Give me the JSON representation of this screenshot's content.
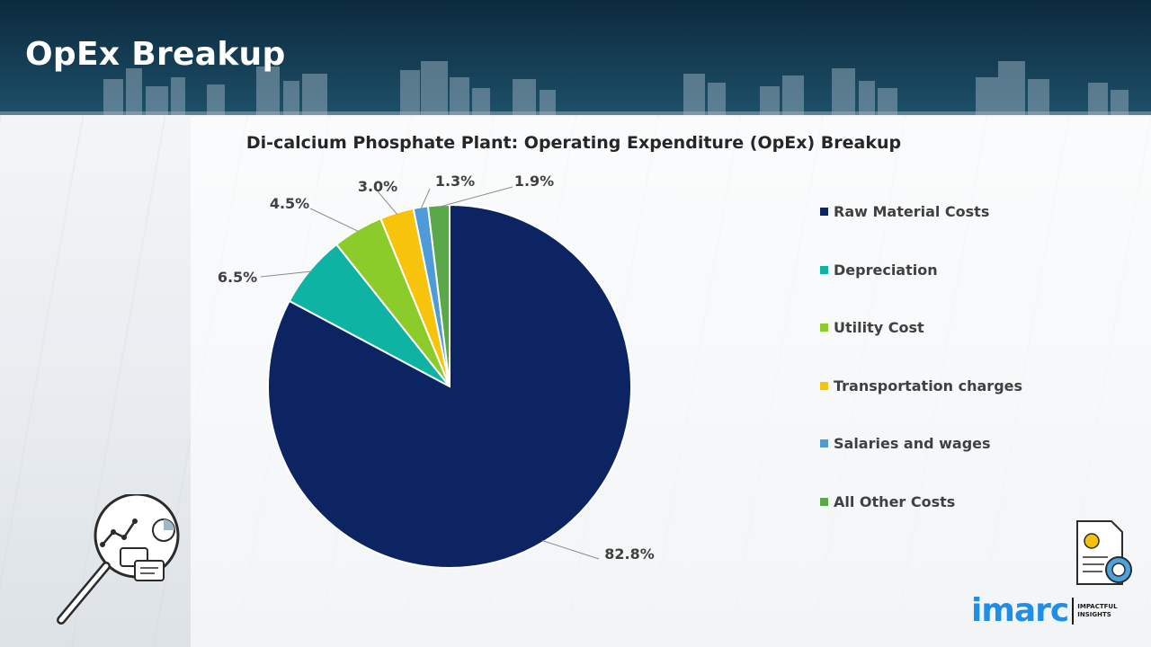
{
  "header": {
    "title": "OpEx Breakup"
  },
  "chart_data": {
    "type": "pie",
    "title": "Di-calcium Phosphate Plant: Operating Expenditure (OpEx) Breakup",
    "categories": [
      "Raw Material Costs",
      "Depreciation",
      "Utility Cost",
      "Transportation charges",
      "Salaries and wages",
      "All Other Costs"
    ],
    "values": [
      82.8,
      6.5,
      4.5,
      3.0,
      1.3,
      1.9
    ],
    "labels": [
      "82.8%",
      "6.5%",
      "4.5%",
      "3.0%",
      "1.3%",
      "1.9%"
    ],
    "colors": [
      "#0c2461",
      "#0fb3a3",
      "#8ccc2a",
      "#f8c30b",
      "#4d9bd8",
      "#5aa84a"
    ],
    "start_angle_deg": 0,
    "direction": "clockwise",
    "legend_position": "right"
  },
  "logo": {
    "word": "imarc",
    "tagline_line1": "IMPACTFUL",
    "tagline_line2": "INSIGHTS"
  },
  "icons": {
    "left": "magnifier-analytics-icon",
    "right": "cost-document-icon"
  }
}
